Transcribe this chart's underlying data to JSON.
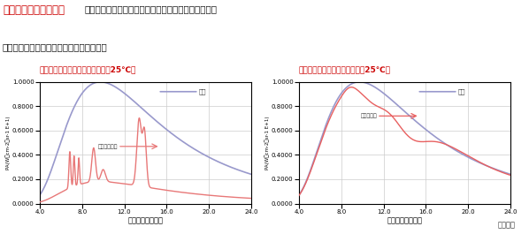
{
  "title_bold": "遠赤外線放射能の比較",
  "title_normal": "　シャキットは、太陽光の放射する理想的な遠赤外線",
  "title_line2": "の量とほぼ同量の遠赤外線を放射します。",
  "chart1_title": "一般のポリ袋の遠赤外線放射能（25℃）",
  "chart2_title": "シャキットの遠赤外線放射能（25℃）",
  "xlabel": "波長（ミクロン）",
  "ylabel": "PA(W＊cm-2＊sr-1 E+1)",
  "xlim": [
    4.0,
    24.0
  ],
  "ylim": [
    0.0,
    1.0
  ],
  "xticks": [
    4.0,
    8.0,
    12.0,
    16.0,
    20.0,
    24.0
  ],
  "yticks": [
    0.0,
    0.2,
    0.4,
    0.6,
    0.8,
    1.0
  ],
  "blackbody_color": "#9999cc",
  "poly_color": "#e87878",
  "shakit_color": "#e86060",
  "legend_blackbody": "黒体",
  "legend_poly": "一般のポリ袋",
  "legend_shakit": "シャキット",
  "credit": "信州大学",
  "bg_color": "#ffffff",
  "grid_color": "#cccccc"
}
